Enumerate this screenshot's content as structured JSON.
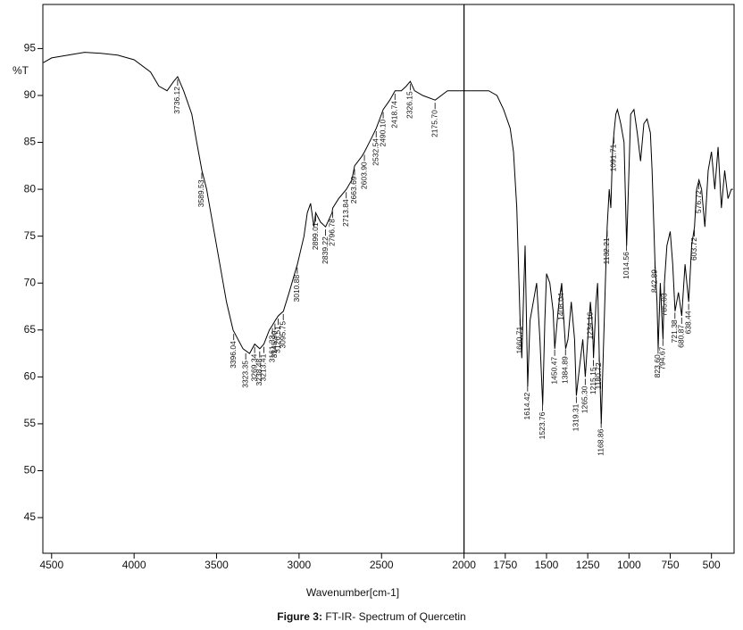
{
  "chart_data": {
    "type": "line",
    "y_label": "%T",
    "x_label": "Wavenumber[cm-1]",
    "caption_label": "Figure 3:",
    "caption": "FT-IR- Spectrum of Quercetin",
    "color": "#000000",
    "cursor_x": 2000,
    "xlim": [
      4553,
      363
    ],
    "ylim": [
      41.2,
      99.7
    ],
    "xticks": [
      4500,
      4000,
      3500,
      3000,
      2500,
      2000,
      1750,
      1500,
      1250,
      1000,
      750,
      500
    ],
    "yticks": [
      45,
      50,
      55,
      60,
      65,
      70,
      75,
      80,
      85,
      90,
      95
    ],
    "x": [
      4550,
      4500,
      4400,
      4300,
      4200,
      4100,
      4000,
      3900,
      3850,
      3800,
      3760,
      3736,
      3700,
      3650,
      3620,
      3589,
      3560,
      3520,
      3480,
      3440,
      3400,
      3370,
      3340,
      3300,
      3269,
      3238,
      3213,
      3180,
      3161,
      3145,
      3126,
      3095,
      3060,
      3010,
      2970,
      2950,
      2930,
      2910,
      2899,
      2870,
      2839,
      2800,
      2796,
      2760,
      2713,
      2680,
      2663,
      2620,
      2603,
      2560,
      2532,
      2500,
      2490,
      2450,
      2418,
      2380,
      2350,
      2326,
      2300,
      2250,
      2175,
      2100,
      2000,
      1900,
      1850,
      1800,
      1760,
      1720,
      1700,
      1680,
      1660,
      1650,
      1640,
      1630,
      1614,
      1600,
      1580,
      1560,
      1540,
      1523,
      1510,
      1500,
      1480,
      1460,
      1450,
      1430,
      1420,
      1408,
      1395,
      1384,
      1370,
      1350,
      1330,
      1319,
      1300,
      1280,
      1265,
      1250,
      1234,
      1220,
      1215,
      1200,
      1190,
      1180,
      1168,
      1155,
      1140,
      1132,
      1120,
      1110,
      1100,
      1091,
      1080,
      1070,
      1050,
      1030,
      1014,
      1000,
      990,
      970,
      950,
      930,
      910,
      890,
      870,
      860,
      842,
      830,
      823,
      810,
      794,
      785,
      770,
      750,
      735,
      721,
      700,
      680,
      660,
      638,
      620,
      603,
      590,
      576,
      560,
      540,
      520,
      500,
      480,
      460,
      440,
      420,
      400,
      380,
      370
    ],
    "values": [
      93.5,
      94,
      94.3,
      94.6,
      94.5,
      94.3,
      93.8,
      92.5,
      91,
      90.5,
      91.5,
      92,
      90.5,
      88,
      85,
      82,
      80,
      76,
      72,
      68,
      65,
      64,
      63,
      62.5,
      63.5,
      63,
      63.5,
      65,
      65.5,
      66,
      66.5,
      67,
      69,
      72,
      75,
      77.5,
      78.5,
      76,
      77.5,
      76.5,
      76,
      77.5,
      78,
      79,
      80,
      81,
      82.5,
      83.5,
      84,
      85.5,
      86.5,
      88,
      88.5,
      89.5,
      90.5,
      90.5,
      91,
      91.5,
      90.5,
      90,
      89.5,
      90.5,
      90.5,
      90.5,
      90.5,
      90,
      88.5,
      86.5,
      84,
      78,
      66,
      62,
      68,
      74,
      59,
      66,
      68,
      70,
      64,
      57,
      66,
      71,
      70,
      67,
      63,
      67,
      68.5,
      70,
      66,
      63,
      64,
      68,
      64,
      58,
      61,
      64,
      60,
      64,
      68,
      65,
      62,
      68,
      70,
      62,
      55,
      63,
      72,
      76,
      80,
      78,
      84,
      86,
      88,
      88.5,
      87,
      85,
      74,
      82,
      88,
      88.5,
      86,
      83,
      87,
      87.5,
      86,
      82,
      72,
      68,
      63,
      70,
      64,
      70,
      74,
      75.5,
      72,
      67,
      69,
      66.5,
      72,
      68,
      74,
      76,
      80,
      81,
      80,
      76,
      82,
      84,
      80,
      84.5,
      78,
      82,
      79,
      80,
      80
    ],
    "peaks": [
      {
        "value": 3736.12,
        "label": "3736.12"
      },
      {
        "value": 3589.53,
        "label": "3589.53"
      },
      {
        "value": 3396.04,
        "label": "3396.04"
      },
      {
        "value": 3323.35,
        "label": "3323.35"
      },
      {
        "value": 3269.34,
        "label": "3269.34"
      },
      {
        "value": 3238.48,
        "label": "3238.48"
      },
      {
        "value": 3213.41,
        "label": "3213.41"
      },
      {
        "value": 3161.33,
        "label": "3161.33"
      },
      {
        "value": 3145.9,
        "label": "3145.90"
      },
      {
        "value": 3126.51,
        "label": "3126.51"
      },
      {
        "value": 3095.75,
        "label": "3095.75"
      },
      {
        "value": 3010.88,
        "label": "3010.88"
      },
      {
        "value": 2899.01,
        "label": "2899.01"
      },
      {
        "value": 2839.22,
        "label": "2839.22"
      },
      {
        "value": 2796.78,
        "label": "2796.78"
      },
      {
        "value": 2713.84,
        "label": "2713.84"
      },
      {
        "value": 2663.69,
        "label": "2663.69"
      },
      {
        "value": 2603.9,
        "label": "2603.90"
      },
      {
        "value": 2532.54,
        "label": "2532.54"
      },
      {
        "value": 2490.1,
        "label": "2490.10"
      },
      {
        "value": 2418.74,
        "label": "2418.74"
      },
      {
        "value": 2326.15,
        "label": "2326.15"
      },
      {
        "value": 2175.7,
        "label": "2175.70"
      },
      {
        "value": 1660.71,
        "label": "1660.71"
      },
      {
        "value": 1614.42,
        "label": "1614.42"
      },
      {
        "value": 1523.76,
        "label": "1523.76"
      },
      {
        "value": 1450.47,
        "label": "1450.47"
      },
      {
        "value": 1408.04,
        "label": "1408.04"
      },
      {
        "value": 1384.89,
        "label": "1384.89"
      },
      {
        "value": 1319.31,
        "label": "1319.31"
      },
      {
        "value": 1265.3,
        "label": "1265.30"
      },
      {
        "value": 1234.16,
        "label": "1234.16"
      },
      {
        "value": 1215.15,
        "label": "1215.15"
      },
      {
        "value": 1180.72,
        "label": "1180.72"
      },
      {
        "value": 1168.86,
        "label": "1168.86"
      },
      {
        "value": 1132.21,
        "label": "1132.21"
      },
      {
        "value": 1091.71,
        "label": "1091.71"
      },
      {
        "value": 1014.56,
        "label": "1014.56"
      },
      {
        "value": 842.89,
        "label": "842.89"
      },
      {
        "value": 823.6,
        "label": "823.60"
      },
      {
        "value": 794.67,
        "label": "794.67"
      },
      {
        "value": 785.03,
        "label": "785.03"
      },
      {
        "value": 721.38,
        "label": "721.38"
      },
      {
        "value": 680.87,
        "label": "680.87"
      },
      {
        "value": 638.44,
        "label": "638.44"
      },
      {
        "value": 603.72,
        "label": "603.72"
      },
      {
        "value": 576.72,
        "label": "576.72"
      }
    ]
  }
}
